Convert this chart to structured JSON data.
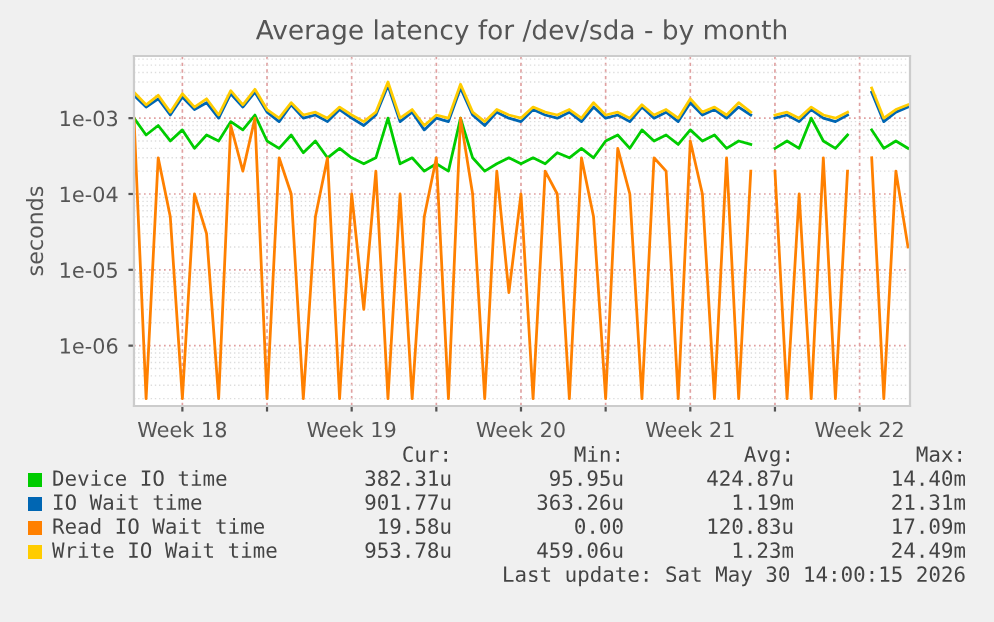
{
  "chart_data": {
    "type": "line",
    "title": "Average latency for /dev/sda - by month",
    "ylabel": "seconds",
    "x": [
      "2026-04-28T12:00",
      "2026-04-29T00:00",
      "2026-04-29T12:00",
      "2026-04-30T00:00",
      "2026-04-30T12:00",
      "2026-05-01T00:00",
      "2026-05-01T12:00",
      "2026-05-02T00:00",
      "2026-05-02T12:00",
      "2026-05-03T00:00",
      "2026-05-03T12:00",
      "2026-05-04T00:00",
      "2026-05-04T12:00",
      "2026-05-05T00:00",
      "2026-05-05T12:00",
      "2026-05-06T00:00",
      "2026-05-06T12:00",
      "2026-05-07T00:00",
      "2026-05-07T12:00",
      "2026-05-08T00:00",
      "2026-05-08T12:00",
      "2026-05-09T00:00",
      "2026-05-09T12:00",
      "2026-05-10T00:00",
      "2026-05-10T12:00",
      "2026-05-11T00:00",
      "2026-05-11T12:00",
      "2026-05-12T00:00",
      "2026-05-12T12:00",
      "2026-05-13T00:00",
      "2026-05-13T12:00",
      "2026-05-14T00:00",
      "2026-05-14T12:00",
      "2026-05-15T00:00",
      "2026-05-15T12:00",
      "2026-05-16T00:00",
      "2026-05-16T12:00",
      "2026-05-17T00:00",
      "2026-05-17T12:00",
      "2026-05-18T00:00",
      "2026-05-18T12:00",
      "2026-05-19T00:00",
      "2026-05-19T12:00",
      "2026-05-20T00:00",
      "2026-05-20T12:00",
      "2026-05-21T00:00",
      "2026-05-21T12:00",
      "2026-05-22T00:00",
      "2026-05-22T12:00",
      "2026-05-23T00:00",
      "2026-05-23T12:00",
      "2026-05-24T00:00",
      "2026-05-24T12:00",
      "2026-05-25T00:00",
      "2026-05-25T12:00",
      "2026-05-26T00:00",
      "2026-05-26T12:00",
      "2026-05-27T00:00",
      "2026-05-27T12:00",
      "2026-05-28T00:00",
      "2026-05-28T12:00",
      "2026-05-29T00:00",
      "2026-05-29T12:00",
      "2026-05-30T00:00",
      "2026-05-30T12:00"
    ],
    "series": [
      {
        "name": "Device IO time",
        "color": "#00cc00",
        "values": [
          0.001,
          0.0006,
          0.0008,
          0.0005,
          0.0007,
          0.0004,
          0.0006,
          0.0005,
          0.0009,
          0.0007,
          0.0011,
          0.0005,
          0.0004,
          0.0006,
          0.00035,
          0.0005,
          0.0003,
          0.0004,
          0.0003,
          0.00025,
          0.0003,
          0.001,
          0.00025,
          0.0003,
          0.0002,
          0.00025,
          0.0002,
          0.001,
          0.0003,
          0.0002,
          0.00025,
          0.0003,
          0.00025,
          0.0003,
          0.00025,
          0.00035,
          0.0003,
          0.0004,
          0.0003,
          0.0005,
          0.0006,
          0.0004,
          0.0007,
          0.0005,
          0.0006,
          0.00045,
          0.0007,
          0.0005,
          0.0006,
          0.0004,
          0.0005,
          0.00045,
          null,
          0.0004,
          0.0005,
          0.0004,
          0.001,
          0.0005,
          0.0004,
          0.0006,
          null,
          0.0007,
          0.0004,
          0.0005,
          0.0004
        ]
      },
      {
        "name": "IO Wait time",
        "color": "#0066b3",
        "values": [
          0.002,
          0.0014,
          0.0018,
          0.0011,
          0.0019,
          0.0013,
          0.0016,
          0.001,
          0.0021,
          0.0014,
          0.0022,
          0.0012,
          0.0009,
          0.0015,
          0.001,
          0.0011,
          0.0009,
          0.0013,
          0.001,
          0.0008,
          0.0011,
          0.0027,
          0.0009,
          0.0012,
          0.0007,
          0.001,
          0.0009,
          0.0025,
          0.0011,
          0.0008,
          0.0012,
          0.001,
          0.0009,
          0.0013,
          0.0011,
          0.001,
          0.0012,
          0.0009,
          0.0014,
          0.001,
          0.0011,
          0.0009,
          0.0014,
          0.001,
          0.0012,
          0.0009,
          0.0016,
          0.0011,
          0.0013,
          0.001,
          0.0014,
          0.0011,
          null,
          0.001,
          0.0011,
          0.0009,
          0.0013,
          0.001,
          0.0009,
          0.0011,
          null,
          0.0022,
          0.0009,
          0.0012,
          0.0014
        ]
      },
      {
        "name": "Read IO Wait time",
        "color": "#ff8000",
        "values": [
          0.001,
          2e-07,
          0.0003,
          5e-05,
          2e-07,
          0.0001,
          3e-05,
          2e-07,
          0.0008,
          0.0002,
          0.001,
          2e-07,
          0.0003,
          0.0001,
          2e-07,
          5e-05,
          0.0003,
          2e-07,
          0.0001,
          3e-06,
          0.0002,
          2e-07,
          0.0001,
          2e-07,
          5e-05,
          0.0003,
          2e-07,
          0.001,
          0.0001,
          2e-07,
          0.0002,
          5e-06,
          0.0001,
          2e-07,
          0.0002,
          0.0001,
          2e-07,
          0.0003,
          5e-05,
          2e-07,
          0.0004,
          0.0001,
          2e-07,
          0.0003,
          0.0002,
          2e-07,
          0.0005,
          0.0001,
          2e-07,
          0.0003,
          2e-07,
          0.0002,
          null,
          0.0002,
          2e-07,
          0.0001,
          2e-07,
          0.0003,
          2e-07,
          0.0002,
          null,
          0.0003,
          2e-07,
          0.0002,
          2e-05
        ]
      },
      {
        "name": "Write IO Wait time",
        "color": "#ffcc00",
        "values": [
          0.0022,
          0.0015,
          0.002,
          0.0012,
          0.0021,
          0.0014,
          0.0018,
          0.0011,
          0.0023,
          0.0015,
          0.0024,
          0.0013,
          0.001,
          0.0016,
          0.0011,
          0.0012,
          0.001,
          0.0014,
          0.0011,
          0.0009,
          0.0012,
          0.003,
          0.001,
          0.0013,
          0.0008,
          0.0011,
          0.001,
          0.0028,
          0.0012,
          0.0009,
          0.0013,
          0.0011,
          0.001,
          0.0014,
          0.0012,
          0.0011,
          0.0013,
          0.001,
          0.0016,
          0.0011,
          0.0012,
          0.001,
          0.0015,
          0.0011,
          0.0013,
          0.001,
          0.0018,
          0.0012,
          0.0014,
          0.0011,
          0.0016,
          0.0012,
          null,
          0.0011,
          0.0012,
          0.001,
          0.0014,
          0.0011,
          0.001,
          0.0012,
          null,
          0.0025,
          0.001,
          0.0013,
          0.0015
        ]
      }
    ],
    "log": true,
    "ylim": [
      1.6e-07,
      0.0066
    ],
    "yticks": [
      {
        "value": 1e-06,
        "label": "1e-06"
      },
      {
        "value": 1e-05,
        "label": "1e-05"
      },
      {
        "value": 0.0001,
        "label": "1e-04"
      },
      {
        "value": 0.001,
        "label": "1e-03"
      }
    ],
    "xlim": [
      "2026-04-28T12:00",
      "2026-05-30T14:00"
    ],
    "xticks": [
      {
        "value": "2026-04-30T12:00",
        "label": "Week 18"
      },
      {
        "value": "2026-05-04T00:00",
        "label": null
      },
      {
        "value": "2026-05-07T12:00",
        "label": "Week 19"
      },
      {
        "value": "2026-05-11T00:00",
        "label": null
      },
      {
        "value": "2026-05-14T12:00",
        "label": "Week 20"
      },
      {
        "value": "2026-05-18T00:00",
        "label": null
      },
      {
        "value": "2026-05-21T12:00",
        "label": "Week 21"
      },
      {
        "value": "2026-05-25T00:00",
        "label": null
      },
      {
        "value": "2026-05-28T12:00",
        "label": "Week 22"
      }
    ],
    "grid": true,
    "legend": "bottom",
    "line_style": "solid",
    "marker": "none",
    "annotations": [
      "Cur:",
      "Min:",
      "Avg:",
      "Max:",
      "382.31u",
      "95.95u",
      "424.87u",
      "14.40m",
      "901.77u",
      "363.26u",
      "1.19m",
      "21.31m",
      "19.58u",
      "0.00",
      "120.83u",
      "17.09m",
      "953.78u",
      "459.06u",
      "1.23m",
      "24.49m",
      "Last update: Sat May 30 14:00:15 2026"
    ]
  }
}
